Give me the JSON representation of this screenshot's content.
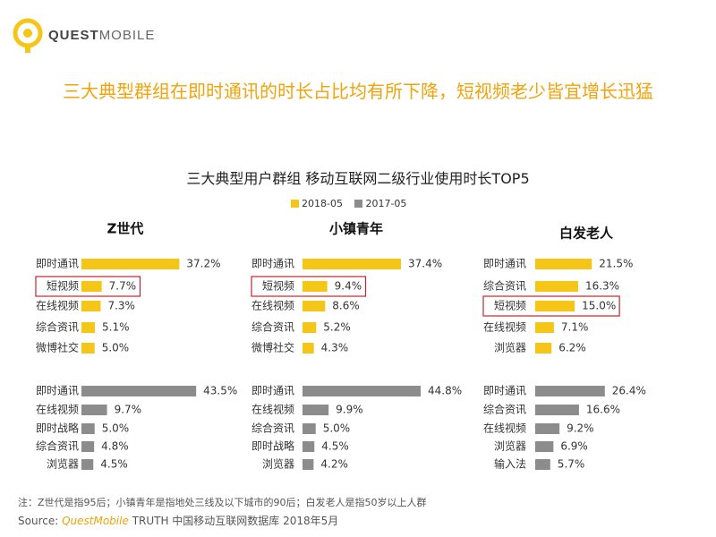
{
  "brand": {
    "bold": "QUEST",
    "light": "MOBILE"
  },
  "headline": "三大典型群组在即时通讯的时长占比均有所下降，短视频老少皆宜增长迅猛",
  "chart_data": {
    "type": "bar",
    "title": "三大典型用户群组 移动互联网二级行业使用时长TOP5",
    "legend": [
      {
        "label": "2018-05",
        "color": "#f5c518"
      },
      {
        "label": "2017-05",
        "color": "#8c8c8c"
      }
    ],
    "groups": [
      {
        "name": "Z世代",
        "series": [
          {
            "period": "2018-05",
            "categories": [
              "即时通讯",
              "短视频",
              "在线视频",
              "综合资讯",
              "微博社交"
            ],
            "values": [
              37.2,
              7.7,
              7.3,
              5.1,
              5.0
            ],
            "labels": [
              "37.2%",
              "7.7%",
              "7.3%",
              "5.1%",
              "5.0%"
            ]
          },
          {
            "period": "2017-05",
            "categories": [
              "即时通讯",
              "在线视频",
              "即时战略",
              "综合资讯",
              "浏览器"
            ],
            "values": [
              43.5,
              9.7,
              5.0,
              4.8,
              4.5
            ],
            "labels": [
              "43.5%",
              "9.7%",
              "5.0%",
              "4.8%",
              "4.5%"
            ]
          }
        ]
      },
      {
        "name": "小镇青年",
        "series": [
          {
            "period": "2018-05",
            "categories": [
              "即时通讯",
              "短视频",
              "在线视频",
              "综合资讯",
              "微博社交"
            ],
            "values": [
              37.4,
              9.4,
              8.6,
              5.2,
              4.3
            ],
            "labels": [
              "37.4%",
              "9.4%",
              "8.6%",
              "5.2%",
              "4.3%"
            ]
          },
          {
            "period": "2017-05",
            "categories": [
              "即时通讯",
              "在线视频",
              "综合资讯",
              "即时战略",
              "浏览器"
            ],
            "values": [
              44.8,
              9.9,
              5.0,
              4.5,
              4.2
            ],
            "labels": [
              "44.8%",
              "9.9%",
              "5.0%",
              "4.5%",
              "4.2%"
            ]
          }
        ]
      },
      {
        "name": "白发老人",
        "series": [
          {
            "period": "2018-05",
            "categories": [
              "即时通讯",
              "综合资讯",
              "短视频",
              "在线视频",
              "浏览器"
            ],
            "values": [
              21.5,
              16.3,
              15.0,
              7.1,
              6.2
            ],
            "labels": [
              "21.5%",
              "16.3%",
              "15.0%",
              "7.1%",
              "6.2%"
            ]
          },
          {
            "period": "2017-05",
            "categories": [
              "即时通讯",
              "综合资讯",
              "在线视频",
              "浏览器",
              "输入法"
            ],
            "values": [
              26.4,
              16.6,
              9.2,
              6.9,
              5.7
            ],
            "labels": [
              "26.4%",
              "16.6%",
              "9.2%",
              "6.9%",
              "5.7%"
            ]
          }
        ]
      }
    ],
    "highlight": "短视频",
    "highlight_color": "#c0262c"
  },
  "footnote": "注：Z世代是指95后；小镇青年是指地处三线及以下城市的90后；白发老人是指50岁以上人群",
  "source": {
    "prefix": "Source:",
    "brand": "QuestMobile",
    "suffix": "TRUTH 中国移动互联网数据库 2018年5月"
  }
}
